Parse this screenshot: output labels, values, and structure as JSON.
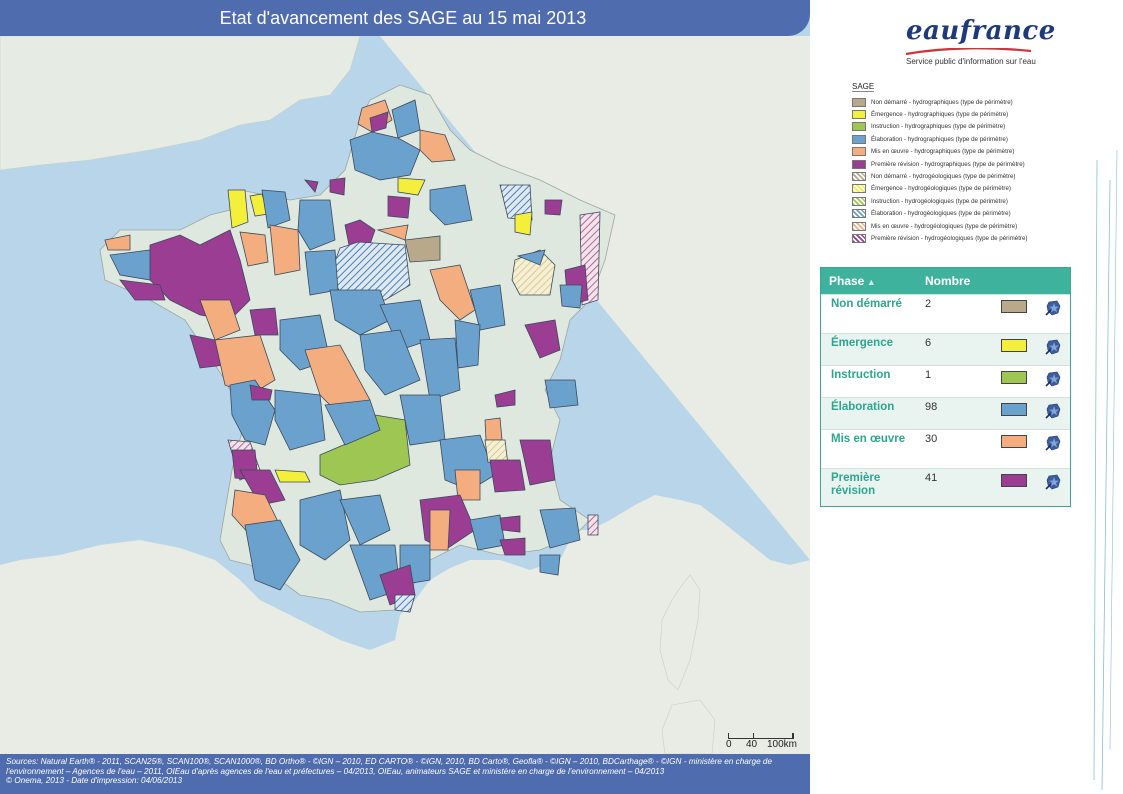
{
  "title": "Etat d'avancement des SAGE au 15 mai 2013",
  "logo": {
    "name": "eaufrance",
    "tagline": "Service public d'information sur l'eau"
  },
  "legend": {
    "title": "SAGE",
    "items": [
      {
        "label": "Non démarré - hydrographiques (type de périmètre)",
        "color": "#b9a98b",
        "hatched": false
      },
      {
        "label": "Émergence - hydrographiques (type de périmètre)",
        "color": "#f3ef3a",
        "hatched": false
      },
      {
        "label": "Instruction - hydrographiques (type de périmètre)",
        "color": "#9ec653",
        "hatched": false
      },
      {
        "label": "Élaboration - hydrographiques (type de périmètre)",
        "color": "#6aa1cd",
        "hatched": false
      },
      {
        "label": "Mis en œuvre - hydrographiques (type de périmètre)",
        "color": "#f4ad7e",
        "hatched": false
      },
      {
        "label": "Première révision - hydrographiques (type de périmètre)",
        "color": "#9b3d93",
        "hatched": false
      },
      {
        "label": "Non démarré - hydrogéologiques (type de périmètre)",
        "color": "#b9a98b",
        "hatched": true
      },
      {
        "label": "Émergence - hydrogéologiques (type de périmètre)",
        "color": "#f3ef3a",
        "hatched": true
      },
      {
        "label": "Instruction - hydrogéologiques (type de périmètre)",
        "color": "#9ec653",
        "hatched": true
      },
      {
        "label": "Élaboration - hydrogéologiques (type de périmètre)",
        "color": "#6aa1cd",
        "hatched": true
      },
      {
        "label": "Mis en œuvre - hydrogéologiques (type de périmètre)",
        "color": "#f4ad7e",
        "hatched": true
      },
      {
        "label": "Première révision - hydrogéologiques (type de périmètre)",
        "color": "#9b3d93",
        "hatched": true
      }
    ]
  },
  "table": {
    "headers": {
      "phase": "Phase",
      "count": "Nombre"
    },
    "rows": [
      {
        "phase": "Non démarré",
        "count": "2",
        "color": "#b9a98b"
      },
      {
        "phase": "Émergence",
        "count": "6",
        "color": "#f3ef3a"
      },
      {
        "phase": "Instruction",
        "count": "1",
        "color": "#9ec653"
      },
      {
        "phase": "Élaboration",
        "count": "98",
        "color": "#6aa1cd"
      },
      {
        "phase": "Mis en œuvre",
        "count": "30",
        "color": "#f4ad7e"
      },
      {
        "phase": "Première révision",
        "count": "41",
        "color": "#9b3d93"
      }
    ]
  },
  "scale": {
    "labels": [
      "0",
      "40",
      "100km"
    ]
  },
  "footer": {
    "line1": "Sources: Natural Earth® - 2011, SCAN25®, SCAN100®, SCAN1000®, BD Ortho® - ©IGN – 2010, ED CARTO® - ©IGN, 2010, BD Carto®, Geofla® - ©IGN – 2010, BDCarthage® - ©IGN - ministère en charge de",
    "line2": "l'environnement – Agences de l'eau – 2011, OIEau d'après agences de l'eau et préfectures – 04/2013, OIEau, animateurs SAGE et ministère en charge de l'environnement – 04/2013",
    "line3": "© Onema, 2013 - Date d'impression: 04/06/2013"
  }
}
